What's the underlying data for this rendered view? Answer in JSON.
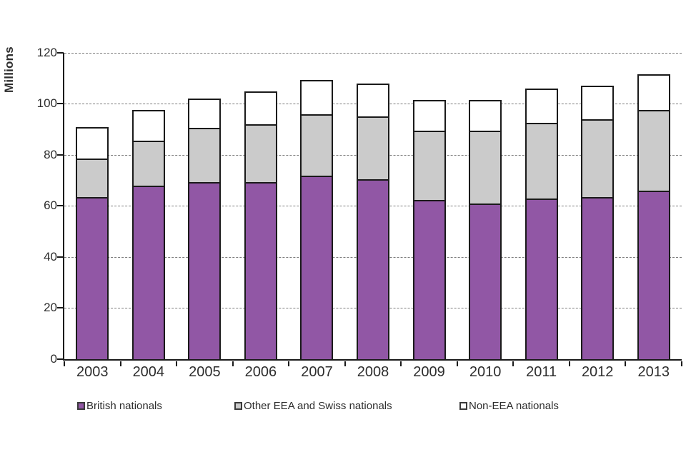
{
  "chart_data": {
    "type": "bar",
    "stacked": true,
    "title": "",
    "xlabel": "",
    "ylabel": "Millions",
    "ylim": [
      0,
      120
    ],
    "yticks": [
      0,
      20,
      40,
      60,
      80,
      100,
      120
    ],
    "grid": "horizontal-dashed",
    "legend_position": "bottom",
    "categories": [
      "2003",
      "2004",
      "2005",
      "2006",
      "2007",
      "2008",
      "2009",
      "2010",
      "2011",
      "2012",
      "2013"
    ],
    "series": [
      {
        "name": "British nationals",
        "color": "#9157A5",
        "values": [
          63.5,
          68,
          69.5,
          69.5,
          72,
          70.5,
          62.5,
          61,
          63,
          63.5,
          66
        ]
      },
      {
        "name": "Other EEA and Swiss nationals",
        "color": "#CBCBCB",
        "values": [
          15,
          17.5,
          21,
          22.5,
          24,
          24.5,
          27,
          28.5,
          29.5,
          30.5,
          31.5
        ]
      },
      {
        "name": "Non-EEA nationals",
        "color": "#FFFFFF",
        "values": [
          12.5,
          12,
          11.5,
          13,
          13.5,
          13,
          12,
          12,
          13.5,
          13,
          14
        ]
      }
    ]
  },
  "colors": {
    "axis": "#1a1a1a",
    "gridline": "#7c7c7c",
    "text": "#2d2d2d",
    "background": "#ffffff"
  }
}
